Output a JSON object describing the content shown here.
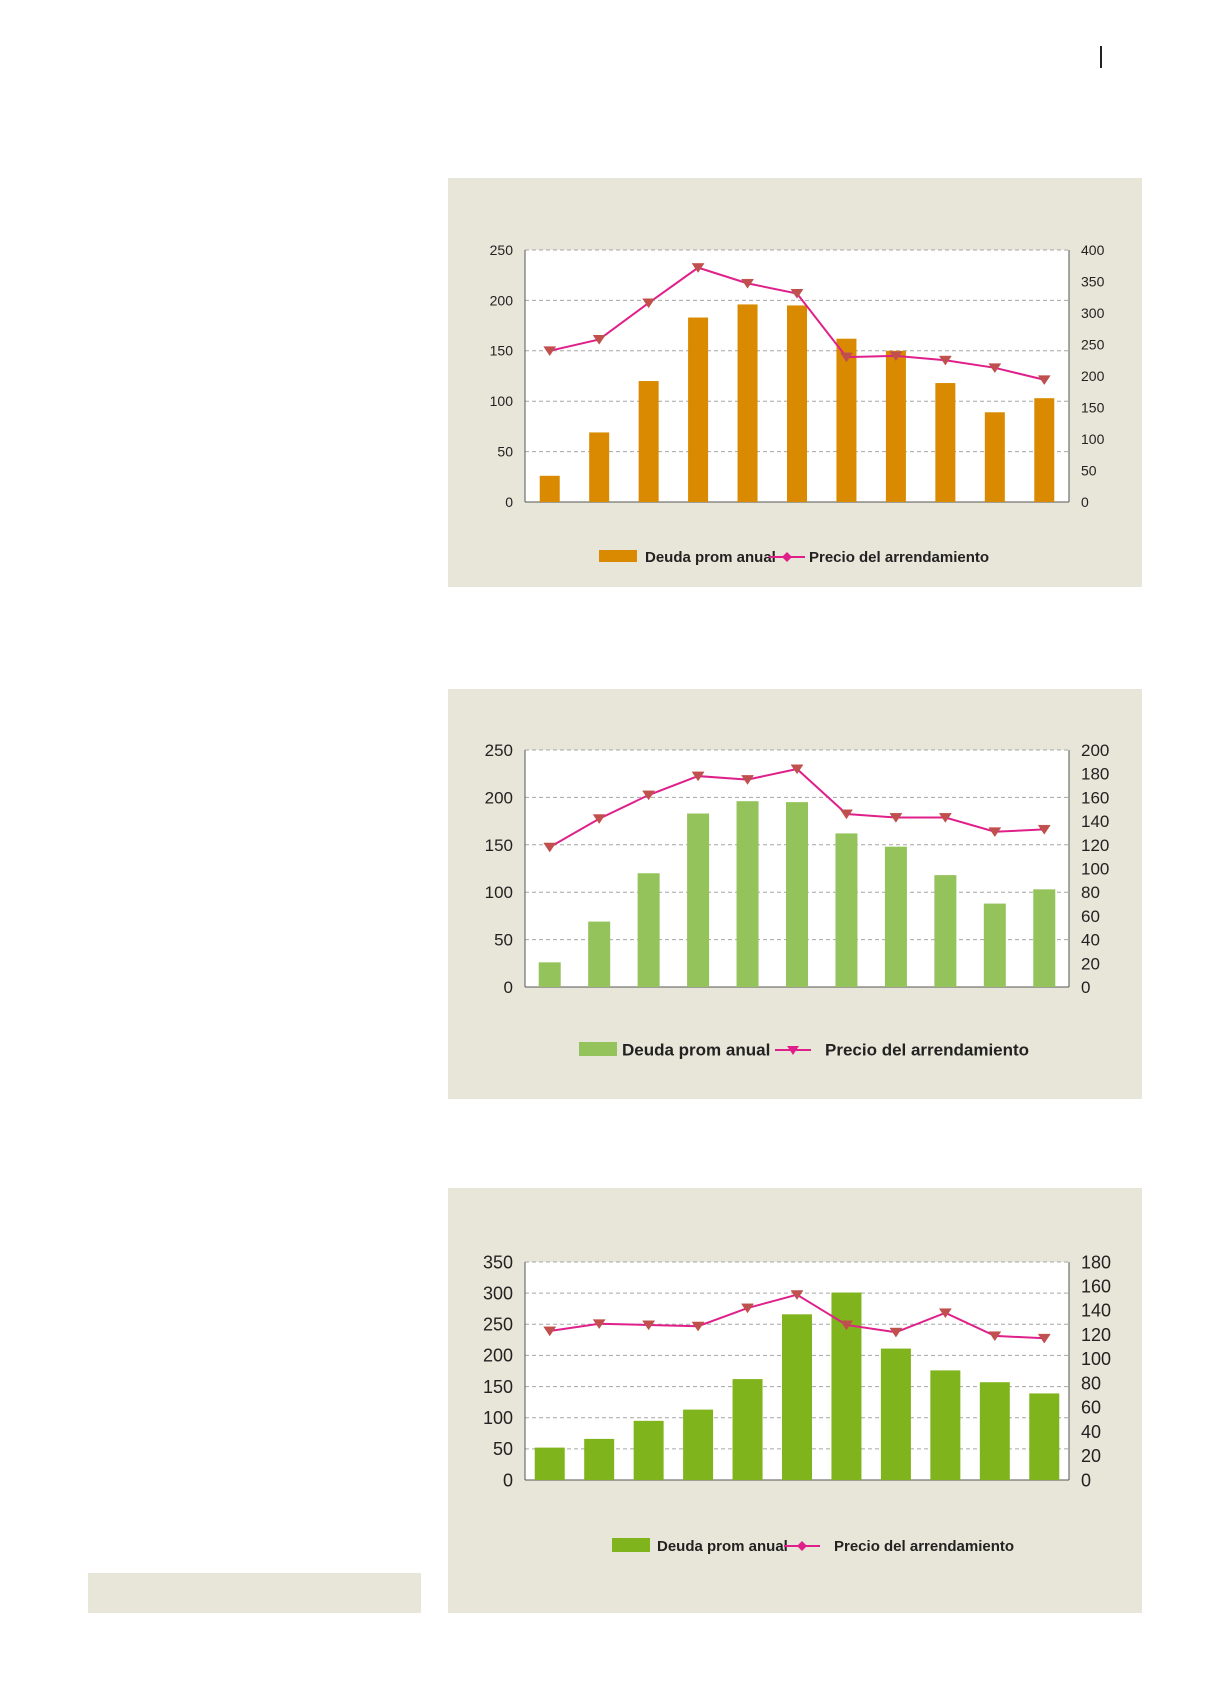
{
  "colors": {
    "panel_bg": "#e8e6d8",
    "line": "#e0208a",
    "marker": "#c0504d",
    "grid": "#a6a6a6"
  },
  "chart_data": [
    {
      "type": "bar",
      "categories": [
        "",
        "",
        "",
        "",
        "",
        "",
        "",
        "",
        "",
        "",
        ""
      ],
      "series": [
        {
          "name": "Deuda prom anual",
          "type": "bar",
          "axis": "left",
          "color": "#d98a00",
          "values": [
            26,
            69,
            120,
            183,
            196,
            195,
            162,
            150,
            118,
            89,
            103
          ]
        },
        {
          "name": "Precio del arrendamiento",
          "type": "line",
          "axis": "right",
          "color": "#e0208a",
          "marker": "triangle-down",
          "values": [
            240,
            258,
            316,
            372,
            347,
            331,
            230,
            232,
            225,
            213,
            194
          ]
        }
      ],
      "left_axis": {
        "ylim": [
          0,
          250
        ],
        "ticks": [
          "0",
          "50",
          "100",
          "150",
          "200",
          "250"
        ]
      },
      "right_axis": {
        "ylim": [
          0,
          400
        ],
        "ticks": [
          "0",
          "50",
          "100",
          "150",
          "200",
          "250",
          "300",
          "350",
          "400"
        ]
      },
      "grid": true,
      "legend": {
        "position": "bottom",
        "labels": [
          "Deuda prom anual",
          "Precio del arrendamiento"
        ]
      }
    },
    {
      "type": "bar",
      "categories": [
        "",
        "",
        "",
        "",
        "",
        "",
        "",
        "",
        "",
        "",
        ""
      ],
      "series": [
        {
          "name": "Deuda prom anual",
          "type": "bar",
          "axis": "left",
          "color": "#93c35a",
          "values": [
            26,
            69,
            120,
            183,
            196,
            195,
            162,
            148,
            118,
            88,
            103
          ]
        },
        {
          "name": "Precio del arrendamiento",
          "type": "line",
          "axis": "right",
          "color": "#e0208a",
          "marker": "triangle-down",
          "values": [
            118,
            142,
            162,
            178,
            175,
            184,
            146,
            143,
            143,
            131,
            133
          ]
        }
      ],
      "left_axis": {
        "ylim": [
          0,
          250
        ],
        "ticks": [
          "0",
          "50",
          "100",
          "150",
          "200",
          "250"
        ]
      },
      "right_axis": {
        "ylim": [
          0,
          200
        ],
        "ticks": [
          "0",
          "20",
          "40",
          "60",
          "80",
          "100",
          "120",
          "140",
          "160",
          "180",
          "200"
        ]
      },
      "grid": true,
      "legend": {
        "position": "bottom",
        "labels": [
          "Deuda prom anual",
          "Precio del arrendamiento"
        ]
      }
    },
    {
      "type": "bar",
      "categories": [
        "",
        "",
        "",
        "",
        "",
        "",
        "",
        "",
        "",
        "",
        ""
      ],
      "series": [
        {
          "name": "Deuda prom anual",
          "type": "bar",
          "axis": "left",
          "color": "#80b41c",
          "values": [
            52,
            66,
            95,
            113,
            162,
            266,
            301,
            211,
            176,
            157,
            139
          ]
        },
        {
          "name": "Precio del arrendamiento",
          "type": "line",
          "axis": "right",
          "color": "#e0208a",
          "marker": "triangle-down",
          "values": [
            123,
            129,
            128,
            127,
            142,
            153,
            128,
            122,
            138,
            119,
            117
          ]
        }
      ],
      "left_axis": {
        "ylim": [
          0,
          350
        ],
        "ticks": [
          "0",
          "50",
          "100",
          "150",
          "200",
          "250",
          "300",
          "350"
        ]
      },
      "right_axis": {
        "ylim": [
          0,
          180
        ],
        "ticks": [
          "0",
          "20",
          "40",
          "60",
          "80",
          "100",
          "120",
          "140",
          "160",
          "180"
        ]
      },
      "grid": true,
      "legend": {
        "position": "bottom",
        "labels": [
          "Deuda prom anual",
          "Precio del arrendamiento"
        ]
      }
    }
  ]
}
